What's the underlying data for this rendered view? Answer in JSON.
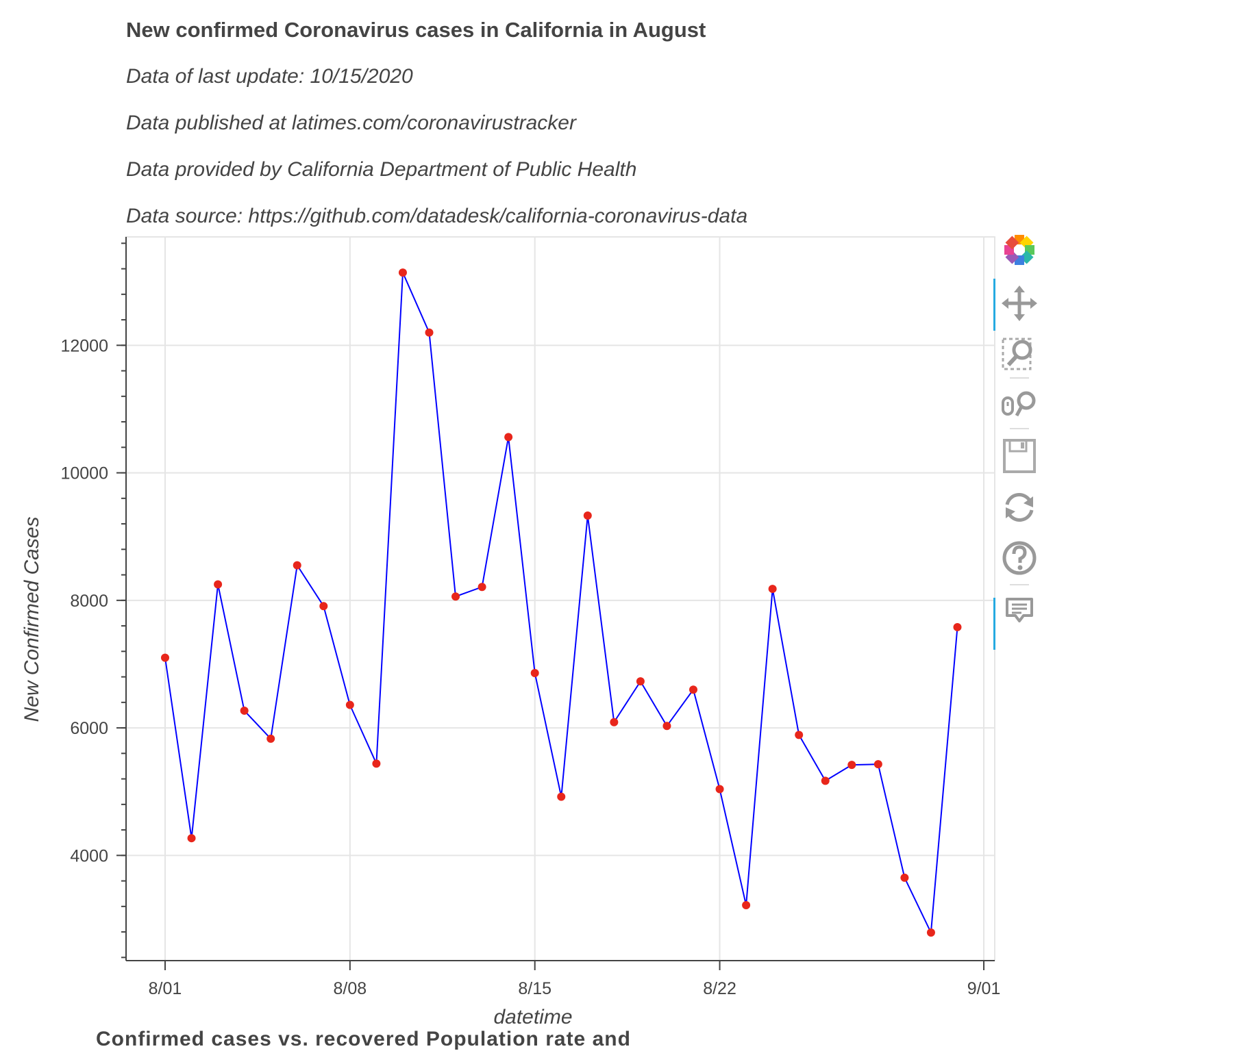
{
  "header": {
    "title": "New confirmed Coronavirus cases in California in August",
    "lines": [
      "Data of last update: 10/15/2020",
      "Data published at latimes.com/coronavirustracker",
      "Data provided by California Department of Public Health",
      "Data source: https://github.com/datadesk/california-coronavirus-data"
    ]
  },
  "chart_data": {
    "type": "line",
    "title": "New confirmed Coronavirus cases in California in August",
    "xlabel": "datetime",
    "ylabel": "New Confirmed Cases",
    "x_tick_labels": [
      "8/01",
      "8/08",
      "8/15",
      "8/22",
      "9/01"
    ],
    "y_tick_labels": [
      "4000",
      "6000",
      "8000",
      "10000",
      "12000"
    ],
    "ylim": [
      2350,
      13700
    ],
    "grid": true,
    "line_color": "#0000ff",
    "marker_color": "#e8261b",
    "series": [
      {
        "x": [
          "8/01",
          "8/02",
          "8/03",
          "8/04",
          "8/05",
          "8/06",
          "8/07",
          "8/08",
          "8/09",
          "8/10",
          "8/11",
          "8/12",
          "8/13",
          "8/14",
          "8/15",
          "8/16",
          "8/17",
          "8/18",
          "8/19",
          "8/20",
          "8/21",
          "8/22",
          "8/23",
          "8/24",
          "8/25",
          "8/26",
          "8/27",
          "8/28",
          "8/29",
          "8/30",
          "8/31"
        ],
        "values": [
          7100,
          4270,
          8250,
          6270,
          5830,
          8550,
          7910,
          6360,
          5440,
          13140,
          12200,
          8060,
          8210,
          10560,
          6860,
          4920,
          9330,
          6090,
          6730,
          6030,
          6600,
          5040,
          3220,
          8180,
          5890,
          5170,
          5420,
          5430,
          3650,
          2790,
          7580
        ]
      }
    ]
  },
  "toolbar": {
    "logo_icon": "bokeh-logo-icon",
    "tools": [
      "pan-icon",
      "box-zoom-icon",
      "wheel-zoom-icon",
      "save-icon",
      "reset-icon",
      "help-icon",
      "hover-icon"
    ]
  },
  "footer": {
    "next_title_partial": "Confirmed cases vs. recovered Population rate and"
  }
}
